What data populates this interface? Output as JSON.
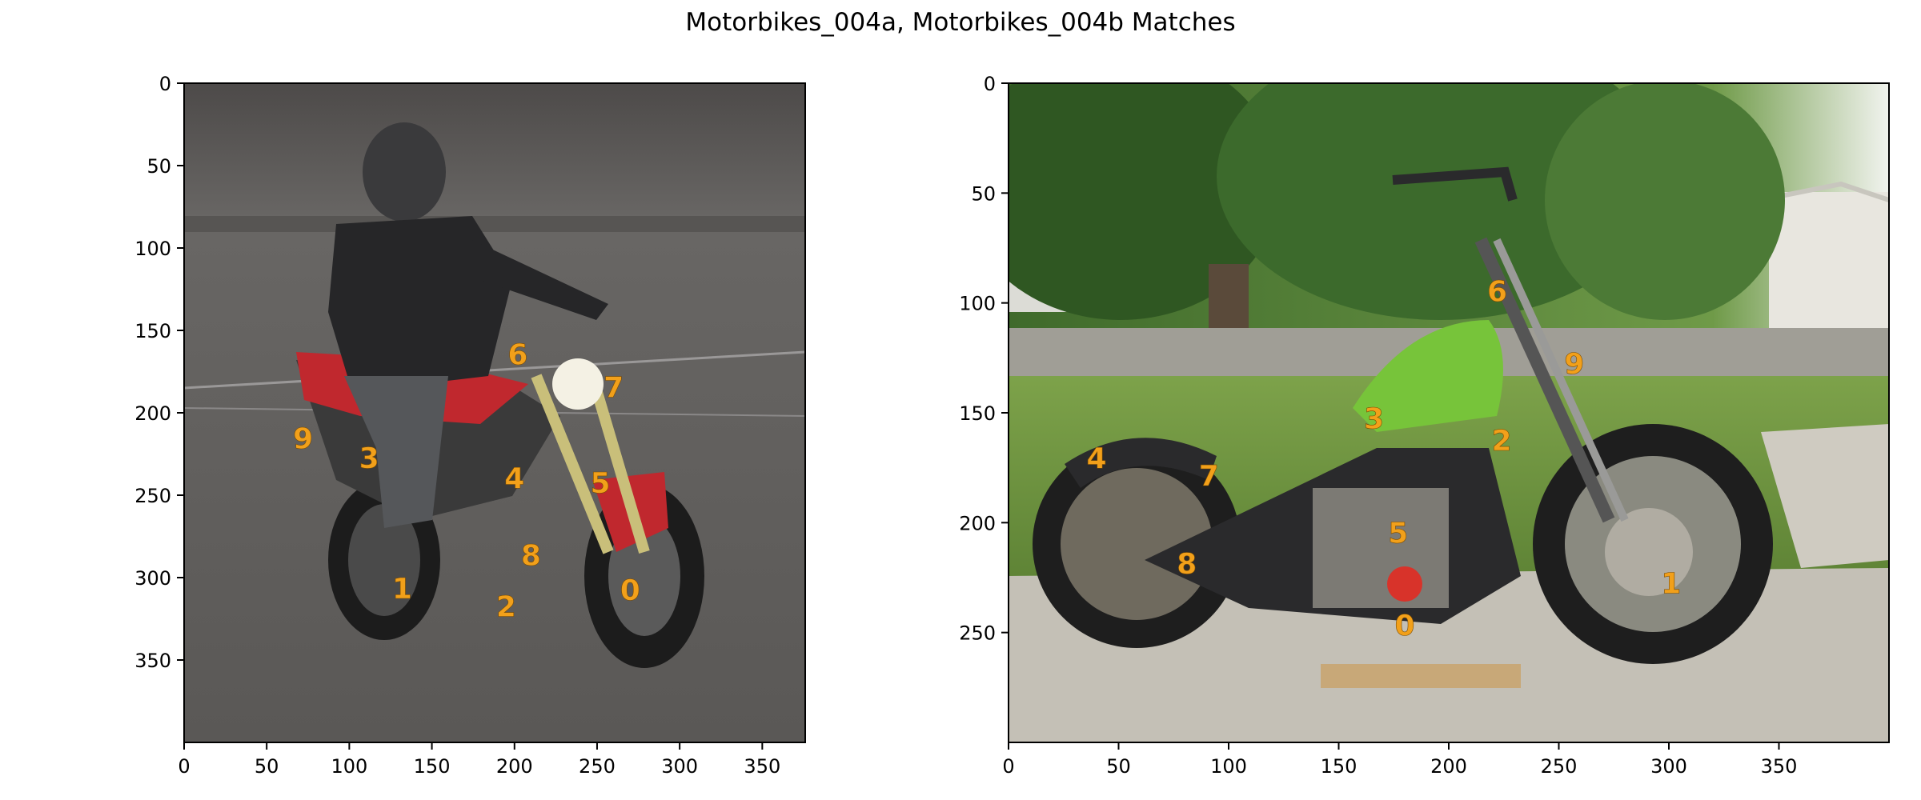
{
  "figure": {
    "title": "Motorbikes_004a, Motorbikes_004b Matches"
  },
  "colors": {
    "keypoint_label": "#f2a01a",
    "axis": "#000000",
    "background": "#ffffff"
  },
  "chart_data": [
    {
      "type": "scatter",
      "name": "Motorbikes_004a",
      "xlim": [
        0,
        376
      ],
      "ylim": [
        400,
        0
      ],
      "xticks": [
        0,
        50,
        100,
        150,
        200,
        250,
        300,
        350
      ],
      "yticks": [
        0,
        50,
        100,
        150,
        200,
        250,
        300,
        350
      ],
      "xlabel": "",
      "ylabel": "",
      "grid": false,
      "image": "photo of a rider on a red motorcycle",
      "points": [
        {
          "label": "0",
          "x": 270,
          "y": 308
        },
        {
          "label": "1",
          "x": 132,
          "y": 307
        },
        {
          "label": "2",
          "x": 195,
          "y": 318
        },
        {
          "label": "3",
          "x": 112,
          "y": 228
        },
        {
          "label": "4",
          "x": 200,
          "y": 240
        },
        {
          "label": "5",
          "x": 252,
          "y": 243
        },
        {
          "label": "6",
          "x": 202,
          "y": 165
        },
        {
          "label": "7",
          "x": 260,
          "y": 185
        },
        {
          "label": "8",
          "x": 210,
          "y": 287
        },
        {
          "label": "9",
          "x": 72,
          "y": 216
        }
      ]
    },
    {
      "type": "scatter",
      "name": "Motorbikes_004b",
      "xlim": [
        0,
        400
      ],
      "ylim": [
        300,
        0
      ],
      "xticks": [
        0,
        50,
        100,
        150,
        200,
        250,
        300,
        350
      ],
      "yticks": [
        0,
        50,
        100,
        150,
        200,
        250
      ],
      "xlabel": "",
      "ylabel": "",
      "grid": false,
      "image": "photo of a parked motorcycle with a green tank",
      "points": [
        {
          "label": "0",
          "x": 180,
          "y": 247
        },
        {
          "label": "1",
          "x": 301,
          "y": 228
        },
        {
          "label": "2",
          "x": 224,
          "y": 163
        },
        {
          "label": "3",
          "x": 166,
          "y": 153
        },
        {
          "label": "4",
          "x": 40,
          "y": 171
        },
        {
          "label": "5",
          "x": 177,
          "y": 205
        },
        {
          "label": "6",
          "x": 222,
          "y": 95
        },
        {
          "label": "7",
          "x": 91,
          "y": 179
        },
        {
          "label": "8",
          "x": 81,
          "y": 219
        },
        {
          "label": "9",
          "x": 257,
          "y": 128
        }
      ]
    }
  ]
}
